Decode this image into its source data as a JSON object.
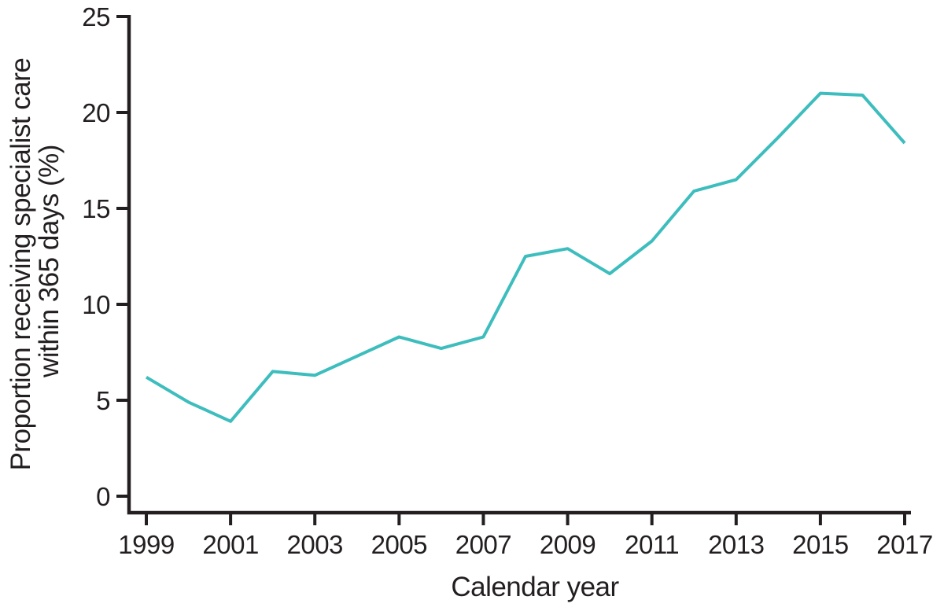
{
  "chart_data": {
    "type": "line",
    "title": "",
    "xlabel": "Calendar year",
    "ylabel_line1": "Proportion receiving specialist care",
    "ylabel_line2": "within 365 days (%)",
    "x": [
      1999,
      2000,
      2001,
      2002,
      2003,
      2004,
      2005,
      2006,
      2007,
      2008,
      2009,
      2010,
      2011,
      2012,
      2013,
      2014,
      2015,
      2016,
      2017
    ],
    "series": [
      {
        "name": "Proportion receiving specialist care within 365 days",
        "values": [
          6.2,
          4.9,
          3.9,
          6.5,
          6.3,
          7.3,
          8.3,
          7.7,
          8.3,
          12.5,
          12.9,
          11.6,
          13.3,
          15.9,
          16.5,
          18.7,
          21.0,
          20.9,
          18.4
        ]
      }
    ],
    "xlim": [
      1999,
      2017
    ],
    "ylim": [
      0,
      25
    ],
    "yticks": [
      0,
      5,
      10,
      15,
      20,
      25
    ],
    "xticks": [
      1999,
      2001,
      2003,
      2005,
      2007,
      2009,
      2011,
      2013,
      2015,
      2017
    ],
    "grid": false,
    "legend": "none",
    "line_color": "#3dbdbd",
    "axis_color": "#231f20",
    "background_color": "#ffffff"
  }
}
